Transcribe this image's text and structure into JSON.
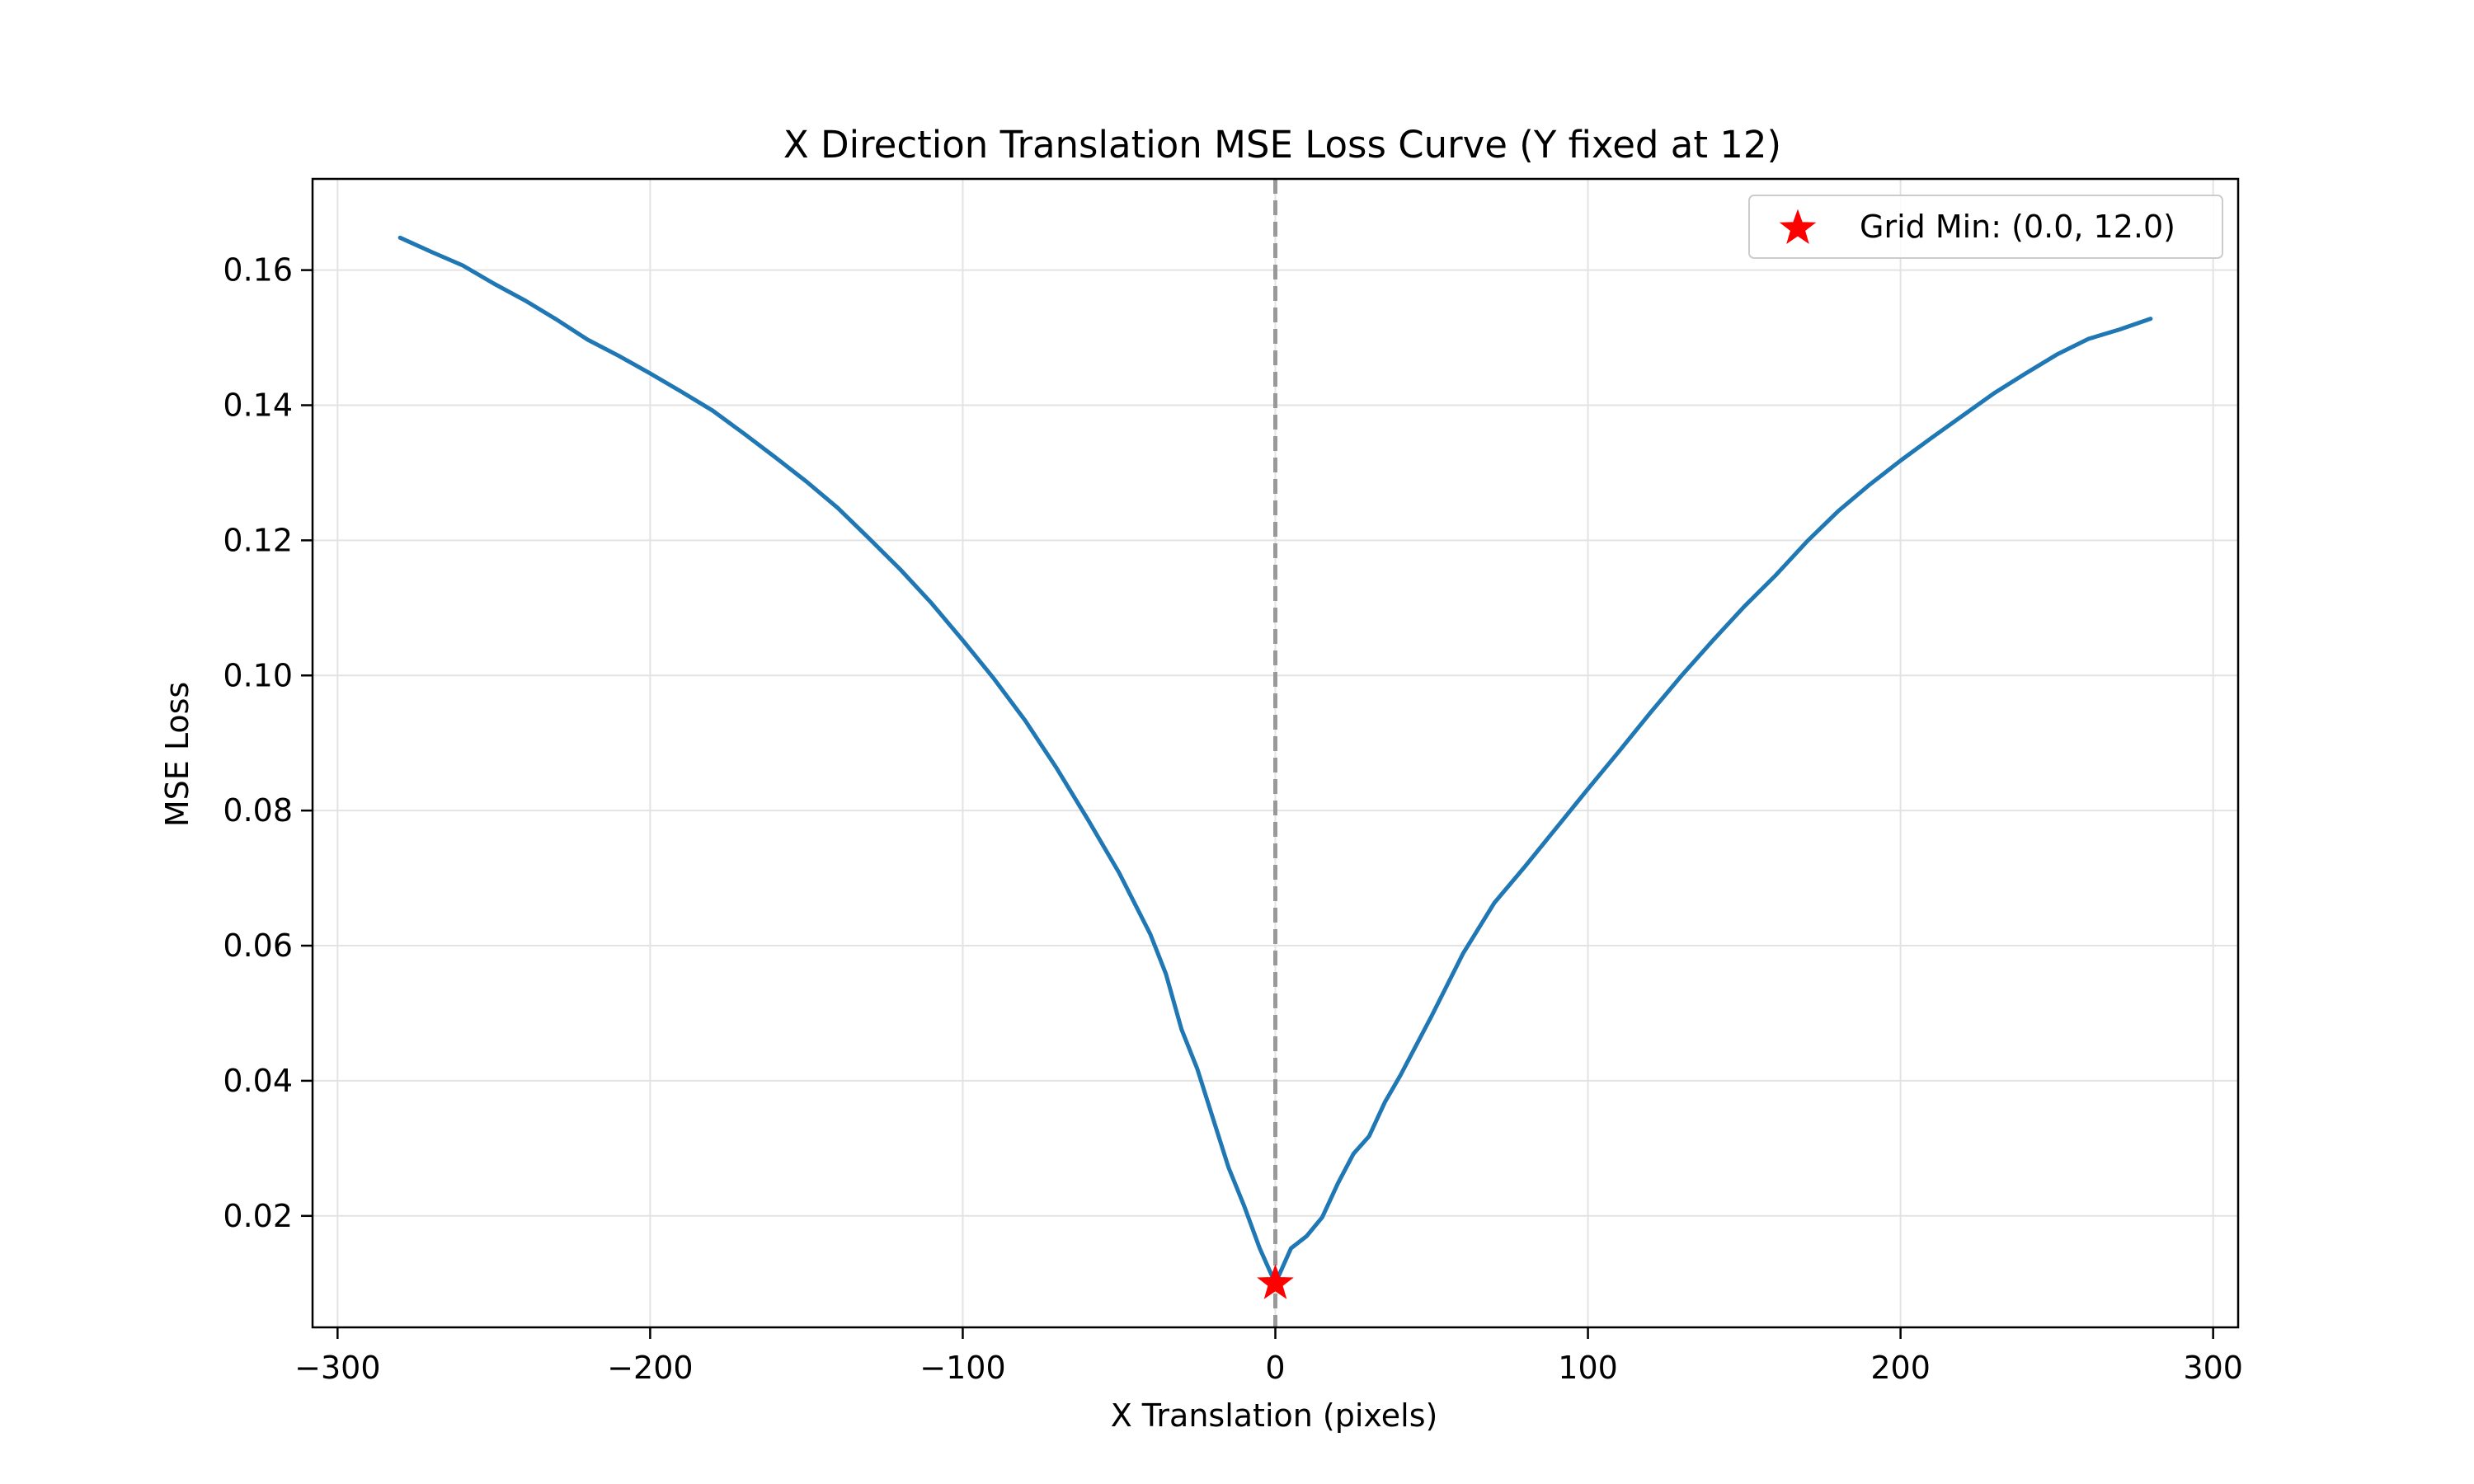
{
  "chart_data": {
    "type": "line",
    "title": "X Direction Translation MSE Loss Curve (Y fixed at 12)",
    "xlabel": "X Translation (pixels)",
    "ylabel": "MSE Loss",
    "xlim": [
      -308,
      308
    ],
    "ylim": [
      0.0035,
      0.1735
    ],
    "xticks": [
      -300,
      -200,
      -100,
      0,
      100,
      200,
      300
    ],
    "xtick_labels": [
      "−300",
      "−200",
      "−100",
      "0",
      "100",
      "200",
      "300"
    ],
    "yticks": [
      0.02,
      0.04,
      0.06,
      0.08,
      0.1,
      0.12,
      0.14,
      0.16
    ],
    "ytick_labels": [
      "0.02",
      "0.04",
      "0.06",
      "0.08",
      "0.10",
      "0.12",
      "0.14",
      "0.16"
    ],
    "grid": true,
    "legend_position": "top-right",
    "series": [
      {
        "color": "#1f77b4",
        "x": [
          -280,
          -270,
          -260,
          -250,
          -240,
          -230,
          -220,
          -210,
          -200,
          -190,
          -180,
          -170,
          -160,
          -150,
          -140,
          -130,
          -120,
          -110,
          -100,
          -90,
          -80,
          -70,
          -60,
          -50,
          -40,
          -35,
          -30,
          -25,
          -20,
          -15,
          -10,
          -5,
          0,
          5,
          10,
          15,
          20,
          25,
          30,
          35,
          40,
          50,
          60,
          70,
          80,
          90,
          100,
          110,
          120,
          130,
          140,
          150,
          160,
          170,
          180,
          190,
          200,
          210,
          220,
          230,
          240,
          250,
          260,
          270,
          280
        ],
        "y": [
          0.1648,
          0.1627,
          0.1607,
          0.158,
          0.1555,
          0.1527,
          0.1497,
          0.1473,
          0.1447,
          0.142,
          0.1392,
          0.1358,
          0.1323,
          0.1287,
          0.1248,
          0.1203,
          0.1157,
          0.1107,
          0.1052,
          0.0995,
          0.0933,
          0.0863,
          0.0787,
          0.0708,
          0.0617,
          0.0558,
          0.0476,
          0.0418,
          0.0345,
          0.0272,
          0.0215,
          0.0152,
          0.01,
          0.0152,
          0.017,
          0.0198,
          0.0248,
          0.0292,
          0.0318,
          0.0368,
          0.0408,
          0.0496,
          0.0588,
          0.0663,
          0.0718,
          0.0775,
          0.0832,
          0.0888,
          0.0945,
          0.1,
          0.1052,
          0.1102,
          0.1148,
          0.1198,
          0.1243,
          0.1282,
          0.1318,
          0.1352,
          0.1385,
          0.1418,
          0.1447,
          0.1475,
          0.1498,
          0.1512,
          0.1528
        ]
      }
    ],
    "vline": {
      "x": 0,
      "color": "#999999",
      "style": "dashed"
    },
    "marker": {
      "x": 0,
      "y": 0.01,
      "color": "#ff0000",
      "shape": "star"
    },
    "legend": [
      {
        "label": "Grid Min: (0.0, 12.0)",
        "marker": "star",
        "color": "#ff0000"
      }
    ]
  }
}
